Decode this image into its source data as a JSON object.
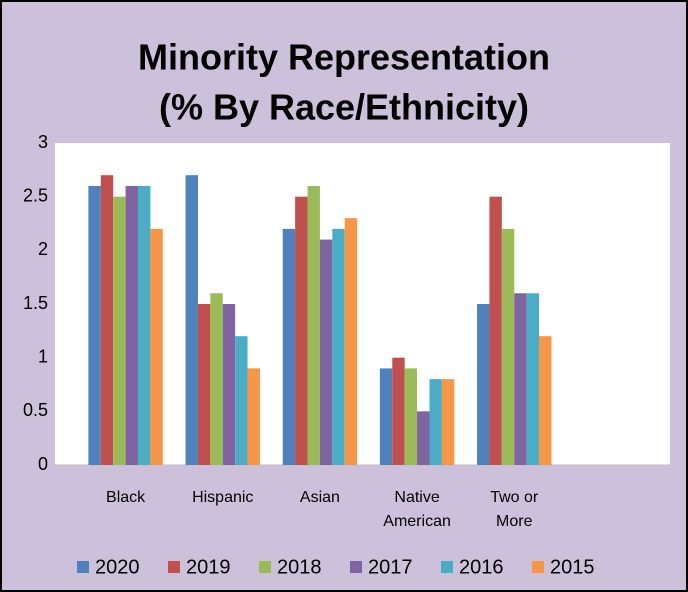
{
  "chart_data": {
    "type": "bar",
    "title": [
      "Minority Representation",
      "(% By Race/Ethnicity)"
    ],
    "categories": [
      "Black",
      "Hispanic",
      "Asian",
      "Native American",
      "Two or More",
      null
    ],
    "series": [
      {
        "name": "2020",
        "color": "#4f81bd",
        "values": [
          2.6,
          2.7,
          2.2,
          0.9,
          1.5,
          null
        ]
      },
      {
        "name": "2019",
        "color": "#c0504d",
        "values": [
          2.7,
          1.5,
          2.5,
          1.0,
          2.5,
          null
        ]
      },
      {
        "name": "2018",
        "color": "#9bbb59",
        "values": [
          2.5,
          1.6,
          2.6,
          0.9,
          2.2,
          null
        ]
      },
      {
        "name": "2017",
        "color": "#8064a2",
        "values": [
          2.6,
          1.5,
          2.1,
          0.5,
          1.6,
          null
        ]
      },
      {
        "name": "2016",
        "color": "#4bacc6",
        "values": [
          2.6,
          1.2,
          2.2,
          0.8,
          1.6,
          null
        ]
      },
      {
        "name": "2015",
        "color": "#f79646",
        "values": [
          2.2,
          0.9,
          2.3,
          0.8,
          1.2,
          null
        ]
      }
    ],
    "ylim": [
      0,
      3
    ],
    "yticks": [
      0,
      0.5,
      1,
      1.5,
      2,
      2.5,
      3
    ],
    "grid": false,
    "legend": "bottom"
  }
}
